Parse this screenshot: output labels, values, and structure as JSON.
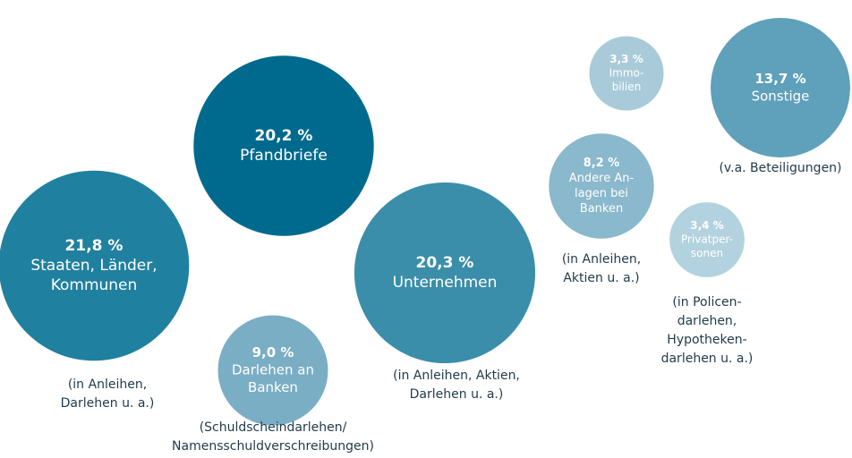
{
  "chart_data": {
    "type": "bubble",
    "categories": [
      [
        "Staaten, Länder,",
        "Kommunen"
      ],
      [
        "Pfandbriefe"
      ],
      [
        "Darlehen an",
        "Banken"
      ],
      [
        "Unternehmen"
      ],
      [
        "Andere An-",
        "lagen bei",
        "Banken"
      ],
      [
        "Immo-",
        "bilien"
      ],
      [
        "Privatper-",
        "sonen"
      ],
      [
        "Sonstige"
      ]
    ],
    "values": [
      21.8,
      20.2,
      9.0,
      20.3,
      8.2,
      3.3,
      3.4,
      13.7
    ],
    "value_labels": [
      "21,8 %",
      "20,2 %",
      "9,0 %",
      "20,3 %",
      "8,2 %",
      "3,3 %",
      "3,4 %",
      "13,7 %"
    ],
    "notes": [
      [
        "(in Anleihen,",
        "Darlehen u. a.)"
      ],
      [],
      [
        "(Schuldscheindarlehen/",
        "Namensschuldverschreibungen)"
      ],
      [
        "(in Anleihen, Aktien,",
        "Darlehen u. a.)"
      ],
      [
        "(in Anleihen,",
        "Aktien u. a.)"
      ],
      [],
      [
        "(in Policen-",
        "darlehen,",
        "Hypotheken-",
        "darlehen u. a.)"
      ],
      [
        "(v.a. Beteiligungen)"
      ]
    ],
    "colors": [
      "#2080a0",
      "#006a8e",
      "#7aaec4",
      "#3a8eaa",
      "#8ab8cc",
      "#a9cbd9",
      "#b3d2df",
      "#5fa0bb"
    ]
  }
}
